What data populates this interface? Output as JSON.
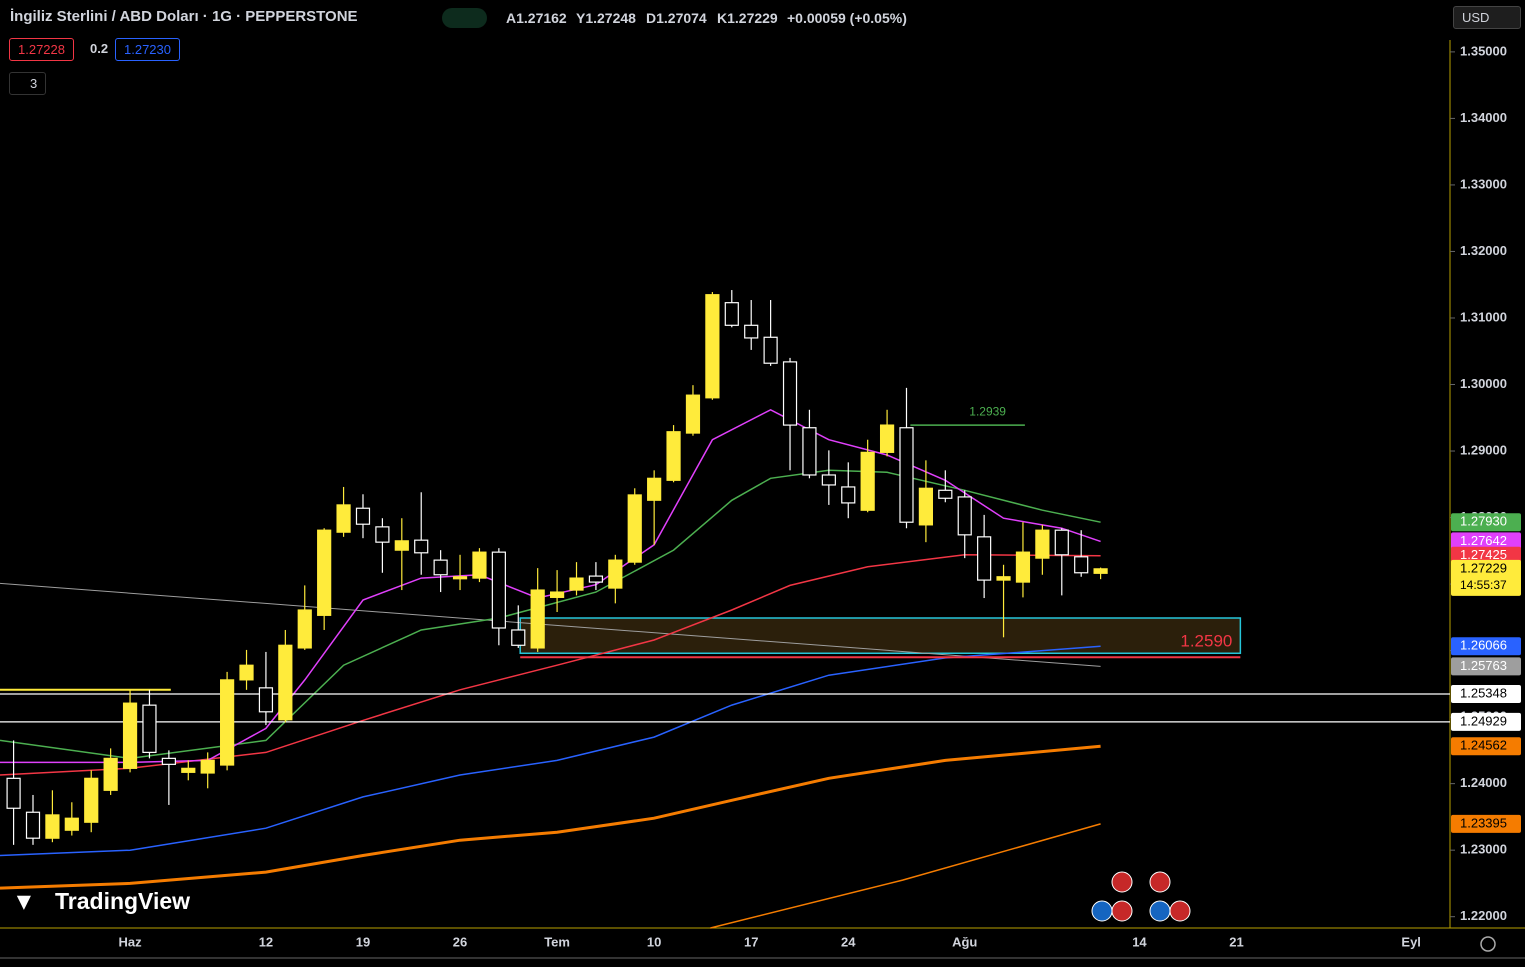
{
  "header": {
    "title": "İngiliz Sterlini / ABD Doları · 1G · PEPPERSTONE",
    "ohlc": [
      "A1.27162",
      "Y1.27248",
      "D1.27074",
      "K1.27229",
      "+0.00059 (+0.05%)"
    ],
    "sell": "1.27228",
    "spread": "0.2",
    "buy": "1.27230",
    "indicators_count": "3",
    "currency": "USD",
    "logo": "TradingView"
  },
  "chart_data": {
    "type": "candlestick",
    "up_color": "#ffeb3b",
    "down_color": "#ffffff",
    "categories": [
      null,
      null,
      null,
      null,
      null,
      null,
      "Haz",
      null,
      null,
      null,
      null,
      null,
      null,
      "12",
      null,
      null,
      null,
      null,
      "19",
      null,
      null,
      null,
      null,
      "26",
      null,
      null,
      null,
      null,
      "Tem",
      null,
      null,
      null,
      null,
      "10",
      null,
      null,
      null,
      null,
      "17",
      null,
      null,
      null,
      null,
      "24",
      null,
      null,
      null,
      null,
      null,
      "Ağu",
      null,
      null,
      null,
      null,
      null,
      null,
      null,
      null,
      "14",
      null,
      null,
      null,
      null,
      "21",
      null,
      null,
      null,
      null,
      null,
      null,
      null,
      null,
      "Eyl"
    ],
    "open": [
      1.2408,
      1.2357,
      1.2318,
      1.233,
      1.2342,
      1.239,
      1.2423,
      1.2518,
      1.2438,
      1.2417,
      1.2416,
      1.2428,
      1.2556,
      1.2544,
      1.2496,
      1.2604,
      1.2653,
      1.2778,
      1.2814,
      1.2786,
      1.2751,
      1.2766,
      1.2736,
      1.2708,
      1.2709,
      1.2748,
      1.2631,
      1.2604,
      1.268,
      1.2691,
      1.2712,
      1.2694,
      1.2733,
      1.2826,
      1.2856,
      1.2927,
      1.298,
      1.3123,
      1.3089,
      1.3071,
      1.3034,
      1.2935,
      1.2864,
      1.2846,
      1.2811,
      1.2898,
      1.2935,
      1.2789,
      1.2841,
      1.2831,
      1.2771,
      1.2706,
      1.2703,
      1.2739,
      1.2781,
      1.2741,
      1.27162,
      null,
      null,
      null,
      null,
      null,
      null,
      null,
      null,
      null,
      null,
      null,
      null,
      null,
      null,
      null,
      null
    ],
    "high": [
      1.2465,
      1.2383,
      1.239,
      1.2372,
      1.242,
      1.2453,
      1.2541,
      1.2541,
      1.245,
      1.2435,
      1.2447,
      1.2568,
      1.2601,
      1.2598,
      1.2631,
      1.2698,
      1.2784,
      1.2846,
      1.2835,
      1.2799,
      1.2799,
      1.2838,
      1.2751,
      1.2744,
      1.2754,
      1.2754,
      1.2668,
      1.2724,
      1.2721,
      1.2733,
      1.2733,
      1.2744,
      1.2844,
      1.2871,
      1.2939,
      1.2999,
      1.3139,
      1.3142,
      1.3127,
      1.3127,
      1.304,
      1.2962,
      1.2901,
      1.2883,
      1.2917,
      1.2962,
      1.2995,
      1.2886,
      1.2871,
      1.2841,
      1.2804,
      1.2729,
      1.2793,
      1.2789,
      1.2784,
      1.2781,
      1.27248,
      null,
      null,
      null,
      null,
      null,
      null,
      null,
      null,
      null,
      null,
      null,
      null,
      null,
      null,
      null,
      null
    ],
    "low": [
      1.2308,
      1.2308,
      1.2312,
      1.2322,
      1.2327,
      1.2383,
      1.2417,
      1.2438,
      1.2368,
      1.2405,
      1.2393,
      1.242,
      1.2541,
      1.2488,
      1.2492,
      1.2601,
      1.2631,
      1.2771,
      1.2769,
      1.2717,
      1.2691,
      1.2714,
      1.2688,
      1.2691,
      1.2703,
      1.2608,
      1.2604,
      1.2598,
      1.2658,
      1.2683,
      1.2691,
      1.2671,
      1.2729,
      1.2759,
      1.2853,
      1.2923,
      1.2977,
      1.3086,
      1.3052,
      1.3028,
      1.2871,
      1.2859,
      1.2819,
      1.2799,
      1.2808,
      1.2892,
      1.2784,
      1.2763,
      1.2823,
      1.2739,
      1.2679,
      1.262,
      1.268,
      1.2714,
      1.2683,
      1.2711,
      1.27074,
      null,
      null,
      null,
      null,
      null,
      null,
      null,
      null,
      null,
      null,
      null,
      null,
      null,
      null,
      null,
      null
    ],
    "close": [
      1.2363,
      1.2318,
      1.2353,
      1.2348,
      1.2408,
      1.2438,
      1.2521,
      1.2447,
      1.2429,
      1.2423,
      1.2435,
      1.2556,
      1.2578,
      1.2508,
      1.2608,
      1.2661,
      1.2781,
      1.2819,
      1.279,
      1.2763,
      1.2765,
      1.2747,
      1.2714,
      1.2711,
      1.2748,
      1.2634,
      1.2608,
      1.2691,
      1.2688,
      1.2709,
      1.2703,
      1.2736,
      1.2834,
      1.2859,
      1.2929,
      1.2984,
      1.3135,
      1.3089,
      1.307,
      1.3032,
      1.2939,
      1.2864,
      1.2849,
      1.2822,
      1.2898,
      1.2939,
      1.2793,
      1.2844,
      1.2829,
      1.2774,
      1.2706,
      1.2711,
      1.2748,
      1.2781,
      1.2744,
      1.2717,
      1.27229,
      null,
      null,
      null,
      null,
      null,
      null,
      null,
      null,
      null,
      null,
      null,
      null,
      null,
      null,
      null,
      null
    ],
    "xlim": [
      -0.7,
      74
    ],
    "ylim": [
      1.2183,
      1.3578
    ],
    "yticks": [
      {
        "value": 1.22,
        "label": "1.22000"
      },
      {
        "value": 1.23,
        "label": "1.23000"
      },
      {
        "value": 1.24,
        "label": "1.24000"
      },
      {
        "value": 1.25,
        "label": "1.25000"
      },
      {
        "value": 1.26,
        "label": "1.26000"
      },
      {
        "value": 1.27,
        "label": "1.27000"
      },
      {
        "value": 1.28,
        "label": "1.28000"
      },
      {
        "value": 1.29,
        "label": "1.29000"
      },
      {
        "value": 1.3,
        "label": "1.30000"
      },
      {
        "value": 1.31,
        "label": "1.31000"
      },
      {
        "value": 1.32,
        "label": "1.32000"
      },
      {
        "value": 1.33,
        "label": "1.33000"
      },
      {
        "value": 1.34,
        "label": "1.34000"
      },
      {
        "value": 1.35,
        "label": "1.35000"
      }
    ],
    "lines": [
      {
        "color": "#f57c00",
        "width": 3,
        "x": [
          -0.7,
          6,
          13,
          18,
          23,
          28,
          33,
          37,
          42,
          48,
          56
        ],
        "values": [
          1.2243,
          1.225,
          1.2267,
          1.2292,
          1.2315,
          1.2327,
          1.2348,
          1.2375,
          1.2408,
          1.2435,
          1.24562
        ]
      },
      {
        "color": "#f57c00",
        "width": 1.5,
        "x": [
          35.9,
          45.8,
          56
        ],
        "values": [
          1.2183,
          1.2255,
          1.23395
        ]
      },
      {
        "color": "#9e9e9e",
        "width": 1,
        "x": [
          -0.7,
          56
        ],
        "values": [
          1.2701,
          1.25763
        ]
      },
      {
        "color": "#2962ff",
        "width": 1.5,
        "x": [
          -0.7,
          6,
          13,
          18,
          23,
          28,
          33,
          37,
          42,
          48,
          56
        ],
        "values": [
          1.2292,
          1.23,
          1.2333,
          1.238,
          1.2413,
          1.2435,
          1.247,
          1.2518,
          1.2563,
          1.2589,
          1.26066
        ]
      },
      {
        "color": "#f23645",
        "width": 1.5,
        "x": [
          -0.7,
          6,
          13,
          18,
          23,
          28,
          33,
          37,
          40,
          44,
          49,
          56
        ],
        "values": [
          1.2413,
          1.2423,
          1.2447,
          1.2495,
          1.2541,
          1.2578,
          1.2616,
          1.2661,
          1.2698,
          1.2726,
          1.2744,
          1.27425
        ]
      },
      {
        "color": "#4caf50",
        "width": 1.5,
        "x": [
          -0.7,
          6,
          13,
          17,
          21,
          25,
          30,
          34,
          37,
          39,
          42,
          45,
          49,
          53,
          56
        ],
        "values": [
          1.2465,
          1.2438,
          1.2465,
          1.2578,
          1.2631,
          1.2649,
          1.2688,
          1.2751,
          1.2826,
          1.2859,
          1.2871,
          1.2868,
          1.2841,
          1.2811,
          1.2793
        ]
      },
      {
        "color": "#e040fb",
        "width": 1.5,
        "x": [
          -0.7,
          6,
          10,
          13,
          15,
          18,
          21,
          24,
          27,
          30,
          33,
          36,
          39,
          42,
          45,
          48,
          51,
          54,
          56
        ],
        "values": [
          1.2432,
          1.2432,
          1.2435,
          1.2483,
          1.2556,
          1.2676,
          1.2709,
          1.2714,
          1.2679,
          1.2699,
          1.2759,
          1.2917,
          1.2962,
          1.2917,
          1.2894,
          1.2856,
          1.2799,
          1.2784,
          1.27642
        ]
      },
      {
        "color": "#ffeb3b",
        "width": 2,
        "x": [
          -0.7,
          8.1
        ],
        "values": [
          1.2541,
          1.2541
        ]
      }
    ],
    "zone": {
      "top": 1.2649,
      "bottom": 1.2596,
      "x": [
        26.1,
        63.2
      ],
      "border": "#26c6da",
      "fill": "#2b1f0b"
    },
    "level": {
      "value": 1.259,
      "label": "1.2590",
      "x": [
        26.1,
        63.2
      ],
      "color": "#f23645"
    },
    "target": {
      "value": 1.2939,
      "x": [
        46.2,
        52.1
      ],
      "color": "#4caf50"
    },
    "price_tags": [
      {
        "value": 1.2793,
        "label": "1.27930",
        "bg": "#4caf50",
        "fg": "#ffffff"
      },
      {
        "value": 1.27642,
        "label": "1.27642",
        "bg": "#e040fb",
        "fg": "#ffffff"
      },
      {
        "value": 1.27425,
        "label": "1.27425",
        "bg": "#f23645",
        "fg": "#ffffff"
      },
      {
        "value": 1.27229,
        "label": "1.27229",
        "bg": "#ffeb3b",
        "fg": "#000000"
      },
      {
        "value": 1.26066,
        "label": "1.26066",
        "bg": "#2962ff",
        "fg": "#ffffff"
      },
      {
        "value": 1.25763,
        "label": "1.25763",
        "bg": "#9e9e9e",
        "fg": "#ffffff"
      },
      {
        "value": 1.25348,
        "label": "1.25348",
        "bg": "#ffffff",
        "fg": "#000000",
        "line": true
      },
      {
        "value": 1.24929,
        "label": "1.24929",
        "bg": "#ffffff",
        "fg": "#000000",
        "line": true
      },
      {
        "value": 1.24562,
        "label": "1.24562",
        "bg": "#f57c00",
        "fg": "#000000"
      },
      {
        "value": 1.23395,
        "label": "1.23395",
        "bg": "#f57c00",
        "fg": "#000000"
      }
    ],
    "countdown": "14:55:37"
  }
}
